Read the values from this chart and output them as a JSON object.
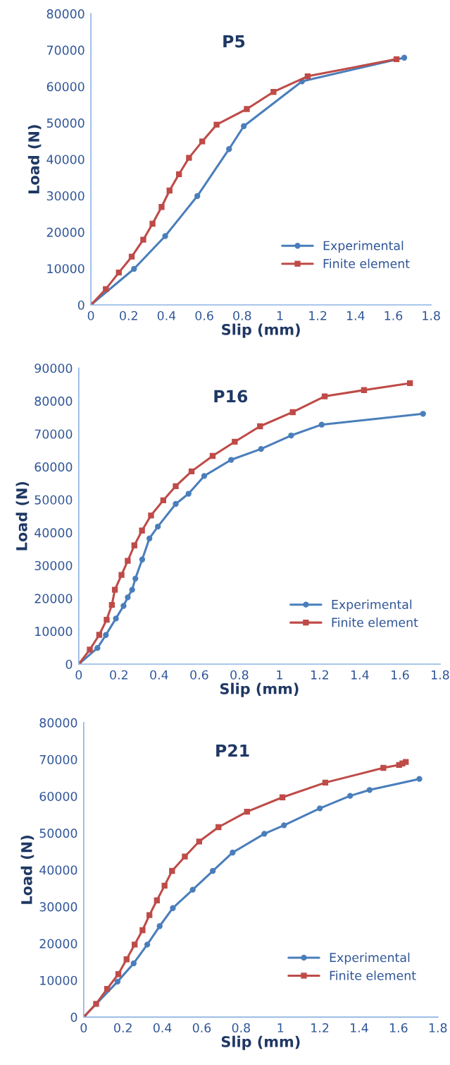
{
  "chart_data": [
    {
      "type": "line",
      "title": "P5",
      "xlabel": "Slip (mm)",
      "ylabel": "Load (N)",
      "xlim": [
        0,
        1.8
      ],
      "ylim": [
        0,
        80000
      ],
      "xticks": [
        0,
        0.2,
        0.4,
        0.6,
        0.8,
        1,
        1.2,
        1.4,
        1.6,
        1.8
      ],
      "yticks": [
        0,
        10000,
        20000,
        30000,
        40000,
        50000,
        60000,
        70000,
        80000
      ],
      "grid": false,
      "legend": "bottom right",
      "series": [
        {
          "name": "Experimental",
          "color": "#4a7ebb",
          "marker": "circle",
          "x": [
            0,
            0.228,
            0.393,
            0.563,
            0.731,
            0.809,
            1.117,
            1.658
          ],
          "values": [
            0,
            9900,
            18900,
            29900,
            42800,
            49100,
            61400,
            67900
          ]
        },
        {
          "name": "Finite element",
          "color": "#be4b48",
          "marker": "square",
          "x": [
            0,
            0.079,
            0.148,
            0.216,
            0.277,
            0.326,
            0.374,
            0.416,
            0.466,
            0.519,
            0.589,
            0.665,
            0.825,
            0.966,
            1.147,
            1.617
          ],
          "values": [
            0,
            4350,
            8900,
            13250,
            17900,
            22300,
            26900,
            31400,
            35900,
            40400,
            44900,
            49500,
            53800,
            58500,
            62800,
            67500
          ]
        }
      ]
    },
    {
      "type": "line",
      "title": "P16",
      "xlabel": "Slip (mm)",
      "ylabel": "Load (N)",
      "xlim": [
        0,
        1.8
      ],
      "ylim": [
        0,
        90000
      ],
      "xticks": [
        0,
        0.2,
        0.4,
        0.6,
        0.8,
        1,
        1.2,
        1.4,
        1.6,
        1.8
      ],
      "yticks": [
        0,
        10000,
        20000,
        30000,
        40000,
        50000,
        60000,
        70000,
        80000,
        90000
      ],
      "grid": false,
      "legend": "bottom right",
      "series": [
        {
          "name": "Experimental",
          "color": "#4a7ebb",
          "marker": "circle",
          "x": [
            0,
            0.093,
            0.135,
            0.185,
            0.223,
            0.244,
            0.266,
            0.282,
            0.316,
            0.352,
            0.394,
            0.483,
            0.547,
            0.625,
            0.759,
            0.908,
            1.058,
            1.21,
            1.715
          ],
          "values": [
            0,
            4900,
            8860,
            13860,
            17700,
            20300,
            22600,
            26000,
            31800,
            38200,
            41800,
            48700,
            51800,
            57200,
            62100,
            65400,
            69500,
            72800,
            76100
          ]
        },
        {
          "name": "Finite element",
          "color": "#be4b48",
          "marker": "square",
          "x": [
            0,
            0.055,
            0.102,
            0.139,
            0.165,
            0.18,
            0.213,
            0.244,
            0.277,
            0.315,
            0.36,
            0.421,
            0.483,
            0.562,
            0.667,
            0.777,
            0.903,
            1.066,
            1.225,
            1.421,
            1.65
          ],
          "values": [
            0,
            4400,
            8900,
            13500,
            18000,
            22600,
            27100,
            31400,
            36100,
            40600,
            45200,
            49800,
            54100,
            58600,
            63300,
            67600,
            72300,
            76600,
            81400,
            83300,
            85400
          ]
        }
      ]
    },
    {
      "type": "line",
      "title": "P21",
      "xlabel": "Slip (mm)",
      "ylabel": "Load (N)",
      "xlim": [
        0,
        1.8
      ],
      "ylim": [
        0,
        80000
      ],
      "xticks": [
        0,
        0.2,
        0.4,
        0.6,
        0.8,
        1,
        1.2,
        1.4,
        1.6,
        1.8
      ],
      "yticks": [
        0,
        10000,
        20000,
        30000,
        40000,
        50000,
        60000,
        70000,
        80000
      ],
      "grid": false,
      "legend": "bottom right",
      "series": [
        {
          "name": "Experimental",
          "color": "#4a7ebb",
          "marker": "circle",
          "x": [
            0,
            0.172,
            0.254,
            0.323,
            0.386,
            0.453,
            0.554,
            0.656,
            0.757,
            0.918,
            1.018,
            1.2,
            1.354,
            1.453,
            1.706
          ],
          "values": [
            0,
            9630,
            14600,
            19700,
            24700,
            29600,
            34600,
            39700,
            44700,
            49800,
            52100,
            56700,
            60100,
            61700,
            64700
          ]
        },
        {
          "name": "Finite element",
          "color": "#be4b48",
          "marker": "square",
          "x": [
            0,
            0.063,
            0.119,
            0.176,
            0.218,
            0.259,
            0.299,
            0.334,
            0.372,
            0.411,
            0.449,
            0.514,
            0.587,
            0.685,
            0.83,
            1.01,
            1.228,
            1.523,
            1.603,
            1.62,
            1.637
          ],
          "values": [
            0,
            3600,
            7660,
            11660,
            15700,
            19700,
            23600,
            27700,
            31700,
            35700,
            39700,
            43600,
            47700,
            51600,
            55800,
            59700,
            63700,
            67700,
            68500,
            68900,
            69300
          ]
        }
      ]
    }
  ]
}
